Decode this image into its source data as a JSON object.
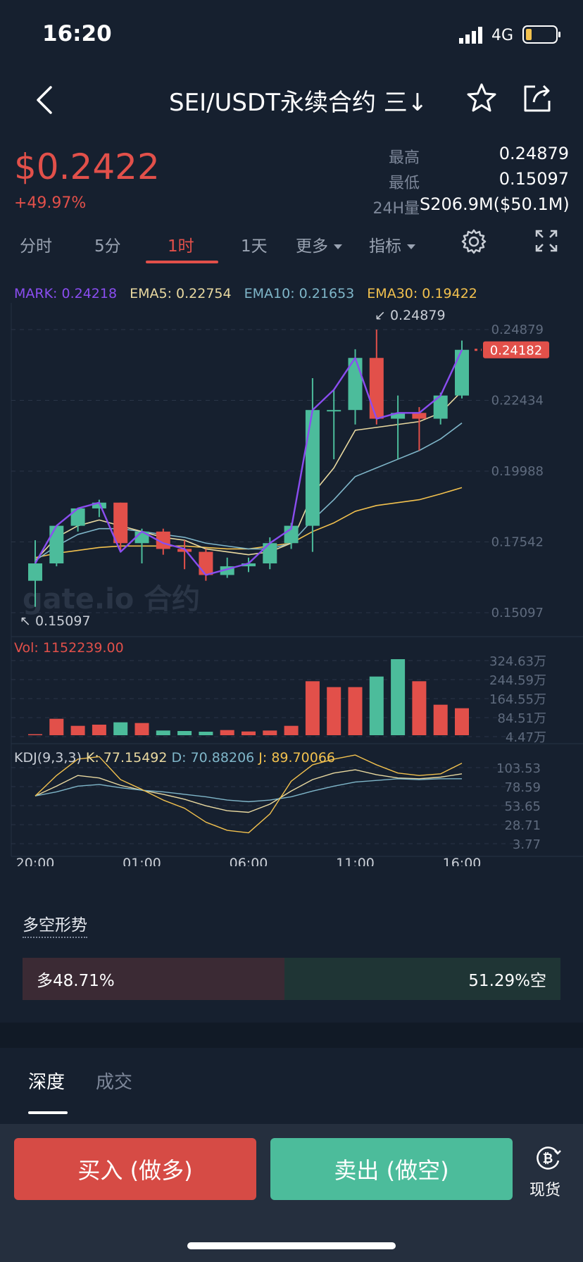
{
  "status_bar": {
    "time": "16:20",
    "network": "4G"
  },
  "header": {
    "title": "SEI/USDT永续合约 三↓"
  },
  "price": {
    "last": "$0.2422",
    "change": "+49.97%",
    "high_label": "最高",
    "high": "0.24879",
    "low_label": "最低",
    "low": "0.15097",
    "vol_label": "24H量",
    "vol": "S206.9M($50.1M)"
  },
  "timeframes": [
    {
      "label": "分时"
    },
    {
      "label": "5分"
    },
    {
      "label": "1时",
      "active": true
    },
    {
      "label": "1天"
    },
    {
      "label": "更多"
    },
    {
      "label": "指标"
    }
  ],
  "legend": {
    "mark": "MARK: 0.24218",
    "ema5": "EMA5: 0.22754",
    "ema10": "EMA10: 0.21653",
    "ema30": "EMA30: 0.19422"
  },
  "colors": {
    "up": "#4cbc9b",
    "down": "#e2504a",
    "mark": "#8a4df0",
    "ema5": "#e9d9a0",
    "ema10": "#7fb6c9",
    "ema30": "#f2c14e"
  },
  "chart_data": [
    {
      "type": "candlestick",
      "price_axis_labels": [
        "0.24879",
        "0.22434",
        "0.19988",
        "0.17542",
        "0.15097"
      ],
      "ylim": [
        0.15097,
        0.24879
      ],
      "max_annotation": "0.24879",
      "min_annotation": "0.15097",
      "current_price_label": "0.24182",
      "x_tick_labels": [
        "20:00",
        "01:00",
        "06:00",
        "11:00",
        "16:00"
      ],
      "candles": [
        {
          "o": 0.162,
          "h": 0.176,
          "l": 0.153,
          "c": 0.168
        },
        {
          "o": 0.168,
          "h": 0.181,
          "l": 0.167,
          "c": 0.181
        },
        {
          "o": 0.181,
          "h": 0.187,
          "l": 0.179,
          "c": 0.187
        },
        {
          "o": 0.187,
          "h": 0.19,
          "l": 0.184,
          "c": 0.189
        },
        {
          "o": 0.189,
          "h": 0.189,
          "l": 0.172,
          "c": 0.175
        },
        {
          "o": 0.175,
          "h": 0.18,
          "l": 0.168,
          "c": 0.179
        },
        {
          "o": 0.179,
          "h": 0.18,
          "l": 0.171,
          "c": 0.173
        },
        {
          "o": 0.173,
          "h": 0.176,
          "l": 0.166,
          "c": 0.172
        },
        {
          "o": 0.172,
          "h": 0.173,
          "l": 0.162,
          "c": 0.164
        },
        {
          "o": 0.164,
          "h": 0.17,
          "l": 0.163,
          "c": 0.167
        },
        {
          "o": 0.167,
          "h": 0.17,
          "l": 0.165,
          "c": 0.168
        },
        {
          "o": 0.168,
          "h": 0.177,
          "l": 0.166,
          "c": 0.175
        },
        {
          "o": 0.175,
          "h": 0.182,
          "l": 0.173,
          "c": 0.181
        },
        {
          "o": 0.181,
          "h": 0.232,
          "l": 0.172,
          "c": 0.221
        },
        {
          "o": 0.221,
          "h": 0.228,
          "l": 0.204,
          "c": 0.221
        },
        {
          "o": 0.221,
          "h": 0.242,
          "l": 0.216,
          "c": 0.239
        },
        {
          "o": 0.239,
          "h": 0.2488,
          "l": 0.216,
          "c": 0.218
        },
        {
          "o": 0.218,
          "h": 0.226,
          "l": 0.204,
          "c": 0.22
        },
        {
          "o": 0.22,
          "h": 0.222,
          "l": 0.207,
          "c": 0.218
        },
        {
          "o": 0.218,
          "h": 0.227,
          "l": 0.216,
          "c": 0.226
        },
        {
          "o": 0.226,
          "h": 0.245,
          "l": 0.225,
          "c": 0.2418
        }
      ],
      "mark_line": [
        0.168,
        0.181,
        0.187,
        0.189,
        0.172,
        0.179,
        0.175,
        0.173,
        0.164,
        0.166,
        0.168,
        0.175,
        0.18,
        0.221,
        0.228,
        0.239,
        0.218,
        0.22,
        0.22,
        0.226,
        0.2418
      ],
      "ema5": [
        0.169,
        0.177,
        0.181,
        0.183,
        0.181,
        0.179,
        0.177,
        0.176,
        0.173,
        0.172,
        0.171,
        0.172,
        0.175,
        0.192,
        0.201,
        0.214,
        0.215,
        0.216,
        0.217,
        0.22,
        0.2275
      ],
      "ema10": [
        0.169,
        0.174,
        0.178,
        0.18,
        0.18,
        0.179,
        0.178,
        0.177,
        0.175,
        0.174,
        0.173,
        0.173,
        0.175,
        0.183,
        0.19,
        0.198,
        0.201,
        0.204,
        0.207,
        0.211,
        0.2165
      ],
      "ema30": [
        0.17,
        0.1715,
        0.1725,
        0.1735,
        0.174,
        0.174,
        0.174,
        0.174,
        0.1735,
        0.173,
        0.173,
        0.174,
        0.175,
        0.179,
        0.182,
        0.186,
        0.188,
        0.189,
        0.19,
        0.192,
        0.1942
      ]
    },
    {
      "type": "bar",
      "title": "Vol: 1152239.00",
      "axis_labels": [
        "324.63万",
        "244.59万",
        "164.55万",
        "84.51万",
        "4.47万"
      ],
      "values": [
        4.5,
        70,
        40,
        45,
        55,
        52,
        20,
        18,
        15,
        22,
        16,
        20,
        40,
        230,
        205,
        205,
        250,
        324,
        230,
        130,
        115
      ],
      "directions": [
        "down",
        "down",
        "down",
        "down",
        "up",
        "down",
        "up",
        "up",
        "up",
        "down",
        "down",
        "down",
        "down",
        "down",
        "down",
        "down",
        "up",
        "up",
        "down",
        "down",
        "down"
      ]
    },
    {
      "type": "line",
      "title": "KDJ(9,3,3)",
      "k_label": "K: 77.15492",
      "d_label": "D: 70.88206",
      "j_label": "J: 89.70066",
      "axis_labels": [
        "103.53",
        "78.59",
        "53.65",
        "28.71",
        "3.77"
      ],
      "ylim": [
        3.77,
        103.53
      ],
      "series": [
        {
          "name": "K",
          "values": [
            50,
            62,
            75,
            72,
            63,
            57,
            52,
            46,
            38,
            32,
            30,
            40,
            56,
            70,
            78,
            82,
            76,
            72,
            71,
            73,
            77
          ]
        },
        {
          "name": "D",
          "values": [
            50,
            55,
            62,
            64,
            60,
            57,
            55,
            52,
            49,
            45,
            43,
            45,
            49,
            56,
            62,
            67,
            69,
            71,
            70,
            71,
            71
          ]
        },
        {
          "name": "J",
          "values": [
            50,
            75,
            95,
            98,
            70,
            58,
            45,
            35,
            18,
            8,
            5,
            28,
            68,
            88,
            95,
            100,
            88,
            78,
            75,
            77,
            90
          ]
        }
      ]
    }
  ],
  "trend": {
    "title": "多空形势",
    "long": "多48.71%",
    "short": "51.29%空",
    "long_pct": 48.71
  },
  "depth_tabs": [
    "深度",
    "成交"
  ],
  "actions": {
    "buy": "买入 (做多)",
    "sell": "卖出 (做空)",
    "spot": "现货"
  }
}
